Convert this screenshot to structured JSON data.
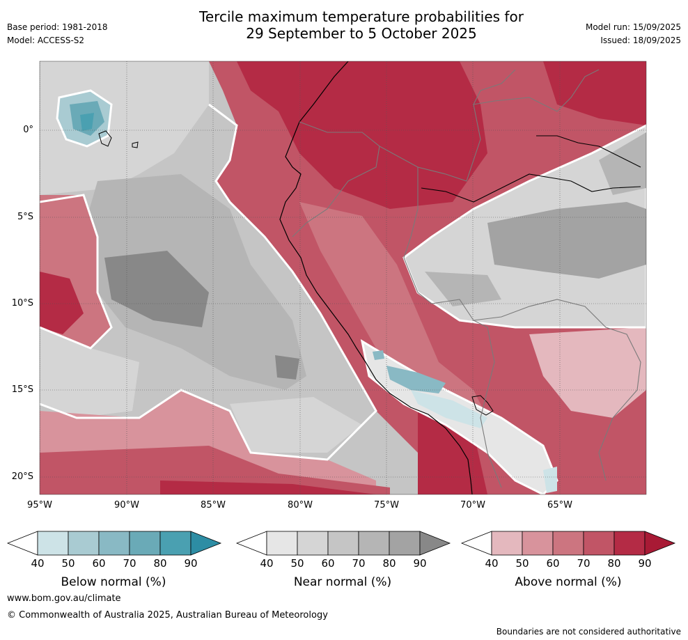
{
  "header": {
    "title_line1": "Tercile maximum temperature probabilities for",
    "title_line2": "29 September to 5 October 2025",
    "base_period": "Base period: 1981-2018",
    "model": "Model: ACCESS-S2",
    "model_run": "Model run: 15/09/2025",
    "issued": "Issued: 18/09/2025"
  },
  "map": {
    "lat_labels": [
      "0°",
      "5°S",
      "10°S",
      "15°S",
      "20°S"
    ],
    "lon_labels": [
      "95°W",
      "90°W",
      "85°W",
      "80°W",
      "75°W",
      "70°W",
      "65°W"
    ]
  },
  "colorbars": {
    "below": {
      "title": "Below normal (%)",
      "ticks": [
        "40",
        "50",
        "60",
        "70",
        "80",
        "90"
      ],
      "colors": [
        "#ffffff",
        "#cde3e7",
        "#a9cbd2",
        "#89b9c4",
        "#6aaab7",
        "#4aa0b1",
        "#2d8da4"
      ]
    },
    "near": {
      "title": "Near normal (%)",
      "ticks": [
        "40",
        "50",
        "60",
        "70",
        "80",
        "90"
      ],
      "colors": [
        "#ffffff",
        "#e6e6e6",
        "#d5d5d5",
        "#c5c5c5",
        "#b5b5b5",
        "#a3a3a3",
        "#888888"
      ]
    },
    "above": {
      "title": "Above normal (%)",
      "ticks": [
        "40",
        "50",
        "60",
        "70",
        "80",
        "90"
      ],
      "colors": [
        "#ffffff",
        "#e4b8be",
        "#d8939c",
        "#cc7580",
        "#c15566",
        "#b42b45",
        "#a81a35"
      ]
    }
  },
  "footer": {
    "website": "www.bom.gov.au/climate",
    "copyright": "© Commonwealth of Australia 2025, Australian Bureau of Meteorology",
    "disclaimer": "Boundaries are not considered authoritative"
  }
}
